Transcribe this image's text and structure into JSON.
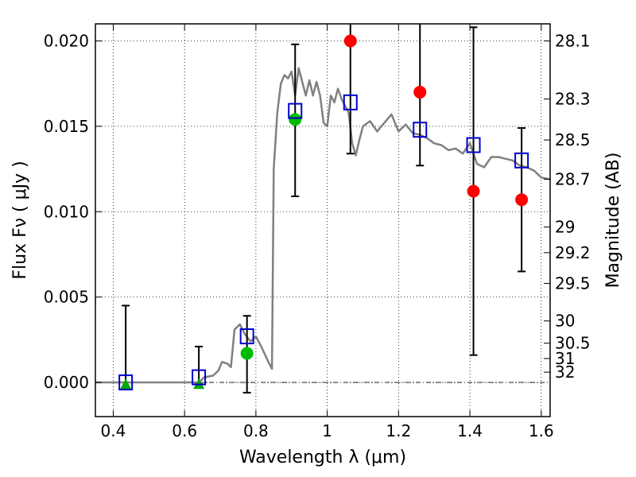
{
  "chart_data": {
    "type": "scatter",
    "xlabel": "Wavelength  λ (μm)",
    "ylabel": "Flux  Fν  ( μJy )",
    "y2label": "Magnitude (AB)",
    "xlim": [
      0.35,
      1.625
    ],
    "ylim": [
      -0.002,
      0.021
    ],
    "grid": true,
    "x_ticks": [
      0.4,
      0.6,
      0.8,
      1.0,
      1.2,
      1.4,
      1.6
    ],
    "x_tick_labels": [
      "0.4",
      "0.6",
      "0.8",
      "1",
      "1.2",
      "1.4",
      "1.6"
    ],
    "y_ticks": [
      0.0,
      0.005,
      0.01,
      0.015,
      0.02
    ],
    "y_tick_labels": [
      "0.000",
      "0.005",
      "0.010",
      "0.015",
      "0.020"
    ],
    "y2_ticks": [
      {
        "flux": 0.02,
        "label": "28.1"
      },
      {
        "flux": 0.0166,
        "label": "28.3"
      },
      {
        "flux": 0.0142,
        "label": "28.5"
      },
      {
        "flux": 0.0119,
        "label": "28.7"
      },
      {
        "flux": 0.0091,
        "label": "29"
      },
      {
        "flux": 0.0076,
        "label": "29.2"
      },
      {
        "flux": 0.0058,
        "label": "29.5"
      },
      {
        "flux": 0.0036,
        "label": "30"
      },
      {
        "flux": 0.0023,
        "label": "30.5"
      },
      {
        "flux": 0.0014,
        "label": "31"
      },
      {
        "flux": 0.0006,
        "label": "32"
      }
    ],
    "model_sed": {
      "color": "#808080",
      "points": [
        [
          0.35,
          0.0
        ],
        [
          0.55,
          0.0
        ],
        [
          0.64,
          0.0
        ],
        [
          0.655,
          0.0003
        ],
        [
          0.68,
          0.0004
        ],
        [
          0.695,
          0.0007
        ],
        [
          0.705,
          0.0012
        ],
        [
          0.72,
          0.0011
        ],
        [
          0.73,
          0.0009
        ],
        [
          0.74,
          0.0031
        ],
        [
          0.755,
          0.0034
        ],
        [
          0.77,
          0.0028
        ],
        [
          0.785,
          0.0024
        ],
        [
          0.8,
          0.0027
        ],
        [
          0.815,
          0.0021
        ],
        [
          0.835,
          0.0012
        ],
        [
          0.845,
          0.0008
        ],
        [
          0.85,
          0.0125
        ],
        [
          0.86,
          0.0158
        ],
        [
          0.87,
          0.0175
        ],
        [
          0.88,
          0.018
        ],
        [
          0.89,
          0.0178
        ],
        [
          0.9,
          0.0182
        ],
        [
          0.91,
          0.0168
        ],
        [
          0.92,
          0.0184
        ],
        [
          0.93,
          0.0176
        ],
        [
          0.94,
          0.0168
        ],
        [
          0.95,
          0.0177
        ],
        [
          0.96,
          0.0168
        ],
        [
          0.97,
          0.0176
        ],
        [
          0.98,
          0.0168
        ],
        [
          0.99,
          0.0152
        ],
        [
          1.0,
          0.015
        ],
        [
          1.01,
          0.0168
        ],
        [
          1.02,
          0.0164
        ],
        [
          1.03,
          0.0172
        ],
        [
          1.04,
          0.0166
        ],
        [
          1.05,
          0.0162
        ],
        [
          1.06,
          0.0158
        ],
        [
          1.07,
          0.014
        ],
        [
          1.08,
          0.0133
        ],
        [
          1.09,
          0.0142
        ],
        [
          1.1,
          0.015
        ],
        [
          1.12,
          0.0153
        ],
        [
          1.14,
          0.0147
        ],
        [
          1.16,
          0.0152
        ],
        [
          1.18,
          0.0157
        ],
        [
          1.2,
          0.0147
        ],
        [
          1.22,
          0.0151
        ],
        [
          1.24,
          0.0146
        ],
        [
          1.26,
          0.0145
        ],
        [
          1.28,
          0.0143
        ],
        [
          1.3,
          0.014
        ],
        [
          1.32,
          0.0139
        ],
        [
          1.34,
          0.0136
        ],
        [
          1.36,
          0.0137
        ],
        [
          1.38,
          0.0134
        ],
        [
          1.4,
          0.014
        ],
        [
          1.42,
          0.0128
        ],
        [
          1.44,
          0.0126
        ],
        [
          1.46,
          0.0132
        ],
        [
          1.48,
          0.0132
        ],
        [
          1.5,
          0.0131
        ],
        [
          1.52,
          0.013
        ],
        [
          1.54,
          0.0127
        ],
        [
          1.56,
          0.0126
        ],
        [
          1.58,
          0.0124
        ],
        [
          1.6,
          0.012
        ],
        [
          1.625,
          0.0119
        ]
      ]
    },
    "error_bars": [
      {
        "x": 0.435,
        "ylow": -0.0003,
        "yhigh": 0.0045
      },
      {
        "x": 0.64,
        "ylow": -0.0001,
        "yhigh": 0.0021
      },
      {
        "x": 0.775,
        "ylow": -0.0006,
        "yhigh": 0.0039
      },
      {
        "x": 0.91,
        "ylow": 0.0109,
        "yhigh": 0.0198
      },
      {
        "x": 1.065,
        "ylow": 0.0134,
        "yhigh": 0.0215
      },
      {
        "x": 1.26,
        "ylow": 0.0127,
        "yhigh": 0.0215
      },
      {
        "x": 1.41,
        "ylow": 0.0016,
        "yhigh": 0.0208
      },
      {
        "x": 1.545,
        "ylow": 0.0065,
        "yhigh": 0.0149
      }
    ],
    "model_squares": {
      "color": "#0000cc",
      "points": [
        [
          0.435,
          0.0
        ],
        [
          0.64,
          0.0003
        ],
        [
          0.775,
          0.0027
        ],
        [
          0.91,
          0.0159
        ],
        [
          1.065,
          0.0164
        ],
        [
          1.26,
          0.0148
        ],
        [
          1.41,
          0.0139
        ],
        [
          1.545,
          0.013
        ]
      ]
    },
    "green_triangles": {
      "color": "#00aa00",
      "points": [
        [
          0.435,
          -0.0001
        ],
        [
          0.64,
          -0.0001
        ]
      ]
    },
    "green_circles": {
      "color": "#00bb00",
      "points": [
        [
          0.775,
          0.0017
        ],
        [
          0.91,
          0.0154
        ]
      ]
    },
    "red_circles": {
      "color": "#ff0000",
      "points": [
        [
          1.065,
          0.02
        ],
        [
          1.26,
          0.017
        ],
        [
          1.41,
          0.0112
        ],
        [
          1.545,
          0.0107
        ]
      ]
    }
  }
}
